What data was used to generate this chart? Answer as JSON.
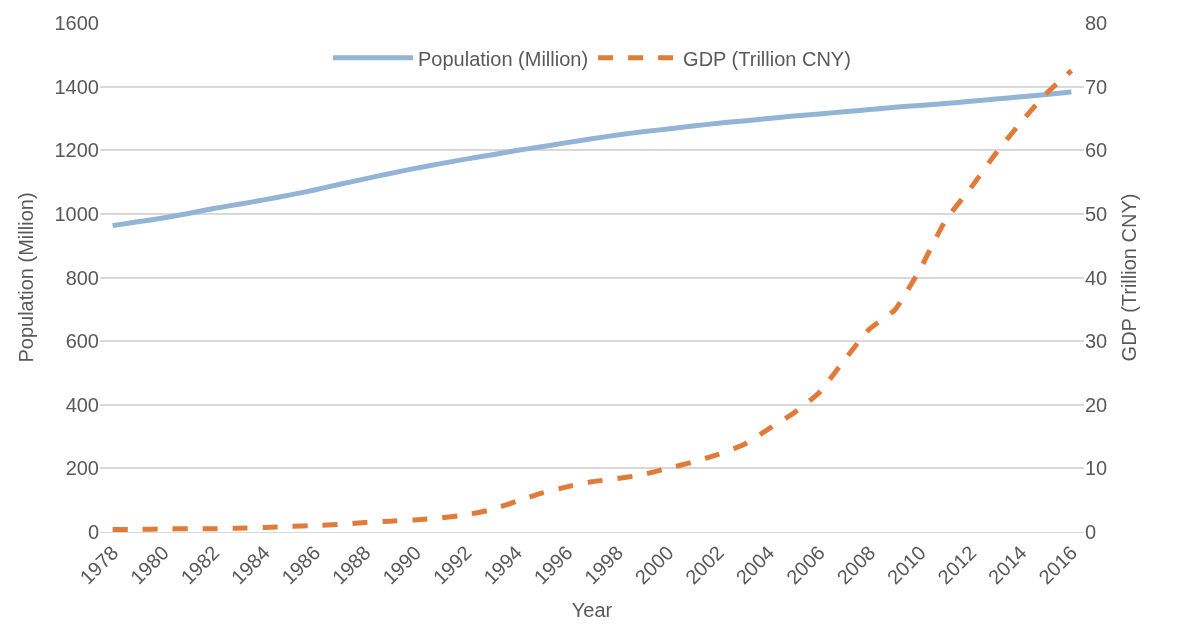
{
  "chart_data": {
    "type": "line",
    "xlabel": "Year",
    "ylabel": "Population (Million)",
    "y2label": "GDP (Trillion CNY)",
    "x": [
      1978,
      1979,
      1980,
      1981,
      1982,
      1983,
      1984,
      1985,
      1986,
      1987,
      1988,
      1989,
      1990,
      1991,
      1992,
      1993,
      1994,
      1995,
      1996,
      1997,
      1998,
      1999,
      2000,
      2001,
      2002,
      2003,
      2004,
      2005,
      2006,
      2007,
      2008,
      2009,
      2010,
      2011,
      2012,
      2013,
      2014,
      2015,
      2016
    ],
    "series": [
      {
        "name": "Population (Million)",
        "color": "#93b3d7",
        "line_style": "solid",
        "values": [
          963,
          975,
          987,
          1001,
          1017,
          1030,
          1044,
          1059,
          1075,
          1093,
          1110,
          1127,
          1143,
          1158,
          1172,
          1185,
          1199,
          1211,
          1224,
          1236,
          1248,
          1258,
          1267,
          1276,
          1285,
          1292,
          1300,
          1308,
          1314,
          1321,
          1328,
          1335,
          1341,
          1347,
          1354,
          1361,
          1368,
          1375,
          1383
        ]
      },
      {
        "name": "GDP (Trillion CNY)",
        "color": "#e07b39",
        "line_style": "dashed",
        "axis": "y2",
        "values": [
          0.4,
          0.4,
          0.5,
          0.5,
          0.5,
          0.6,
          0.7,
          0.9,
          1.0,
          1.2,
          1.5,
          1.7,
          1.9,
          2.2,
          2.7,
          3.5,
          4.8,
          6.1,
          7.1,
          7.9,
          8.4,
          9.0,
          10.0,
          11.0,
          12.2,
          13.7,
          16.2,
          18.7,
          21.9,
          27.0,
          31.9,
          34.9,
          41.3,
          48.9,
          54.0,
          59.5,
          64.4,
          68.9,
          72.5
        ]
      }
    ],
    "xlim": [
      1977.5,
      2016.5
    ],
    "xticks": [
      1978,
      1980,
      1982,
      1984,
      1986,
      1988,
      1990,
      1992,
      1994,
      1996,
      1998,
      2000,
      2002,
      2004,
      2006,
      2008,
      2010,
      2012,
      2014,
      2016
    ],
    "ylim": [
      0,
      1600
    ],
    "yticks": [
      0,
      200,
      400,
      600,
      800,
      1000,
      1200,
      1400,
      1600
    ],
    "y2lim": [
      0,
      80
    ],
    "y2ticks": [
      0,
      10,
      20,
      30,
      40,
      50,
      60,
      70,
      80
    ],
    "grid": "y",
    "legend": "top",
    "marker": "none"
  }
}
